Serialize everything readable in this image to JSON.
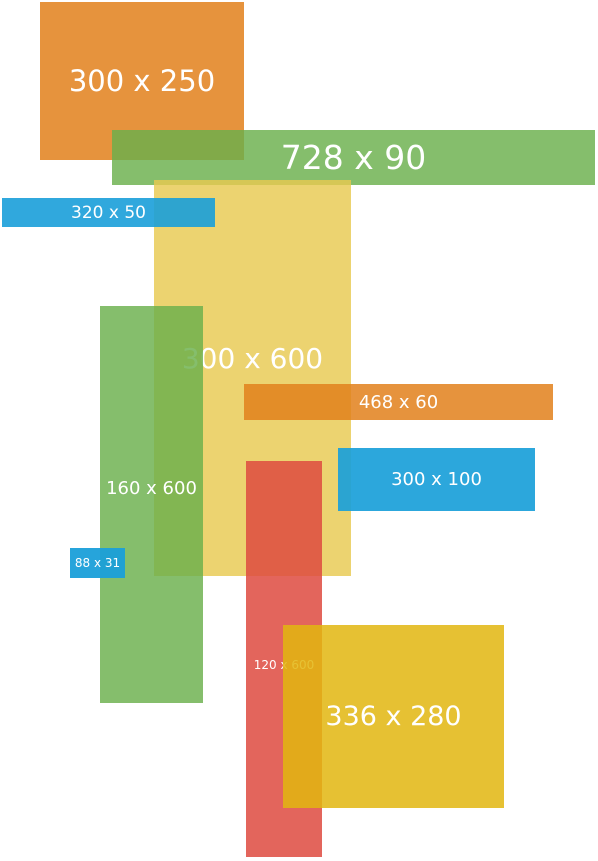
{
  "ads": {
    "a300x250": {
      "label": "300 x 250",
      "color": "#E2801B"
    },
    "a728x90": {
      "label": "728 x 90",
      "color": "#6AB04C"
    },
    "a300x600": {
      "label": "300 x 600",
      "color": "#E8C950"
    },
    "a320x50": {
      "label": "320 x 50",
      "color": "#1A9FD9"
    },
    "a160x600": {
      "label": "160 x 600",
      "color": "#6AB04C"
    },
    "a468x60": {
      "label": "468 x 60",
      "color": "#E2801B"
    },
    "a300x100": {
      "label": "300 x 100",
      "color": "#1A9FD9"
    },
    "a120x600": {
      "label": "120 x 600",
      "color": "#DE4A3F"
    },
    "a88x31": {
      "label": "88 x 31",
      "color": "#1A9FD9"
    },
    "a336x280": {
      "label": "336 x 280",
      "color": "#E2B60F"
    }
  }
}
